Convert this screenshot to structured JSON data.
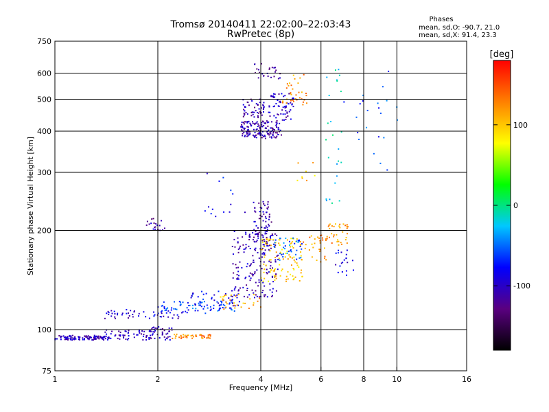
{
  "chart_data": {
    "type": "scatter",
    "title": "Tromsø 20140411 22:02:00–22:03:43",
    "subtitle": "RwPretec (8p)",
    "xlabel": "Frequency [MHz]",
    "ylabel": "Stationary phase Virtual Height [km]",
    "x_scale": "log",
    "y_scale": "log",
    "xlim": [
      1,
      16
    ],
    "ylim": [
      75,
      750
    ],
    "x_ticks": [
      1,
      2,
      4,
      6,
      8,
      10,
      16
    ],
    "y_ticks": [
      75,
      100,
      200,
      300,
      400,
      500,
      600,
      750
    ],
    "x_grid": [
      2,
      4,
      6,
      8,
      10
    ],
    "y_grid": [
      100,
      200,
      300,
      400,
      500,
      600
    ],
    "grid": true,
    "phase_info": {
      "heading": "Phases",
      "line_o": "mean, sd,O: -90.7, 21.0",
      "line_x": "mean, sd,X:  91.4, 23.3"
    },
    "colorbar": {
      "label": "[deg]",
      "range": [
        -180,
        180
      ],
      "ticks": [
        100,
        0,
        -100
      ],
      "colors": [
        "#000000",
        "#5a0080",
        "#0000ff",
        "#00c8ff",
        "#00ff00",
        "#ffff00",
        "#ff8000",
        "#ff0000"
      ]
    },
    "point_clusters": [
      {
        "freq": [
          1.0,
          1.4
        ],
        "height": [
          93,
          96
        ],
        "phase": -105,
        "n": 110
      },
      {
        "freq": [
          1.4,
          1.95
        ],
        "height": [
          93,
          100
        ],
        "phase": -100,
        "n": 60
      },
      {
        "freq": [
          1.85,
          2.2
        ],
        "height": [
          93,
          102
        ],
        "phase": -110,
        "n": 40
      },
      {
        "freq": [
          2.2,
          2.9
        ],
        "height": [
          94,
          97
        ],
        "phase": 130,
        "n": 45
      },
      {
        "freq": [
          1.4,
          2.5
        ],
        "height": [
          108,
          115
        ],
        "phase": -95,
        "n": 55
      },
      {
        "freq": [
          2.0,
          3.4
        ],
        "height": [
          112,
          122
        ],
        "phase": -60,
        "n": 70
      },
      {
        "freq": [
          2.5,
          3.5
        ],
        "height": [
          118,
          132
        ],
        "phase": -80,
        "n": 45
      },
      {
        "freq": [
          3.0,
          4.0
        ],
        "height": [
          115,
          128
        ],
        "phase": 110,
        "n": 30
      },
      {
        "freq": [
          3.3,
          4.5
        ],
        "height": [
          125,
          200
        ],
        "phase": -105,
        "n": 180
      },
      {
        "freq": [
          3.8,
          4.3
        ],
        "height": [
          180,
          245
        ],
        "phase": -110,
        "n": 70
      },
      {
        "freq": [
          4.0,
          5.3
        ],
        "height": [
          140,
          190
        ],
        "phase": 95,
        "n": 110
      },
      {
        "freq": [
          4.3,
          5.3
        ],
        "height": [
          160,
          190
        ],
        "phase": -50,
        "n": 40
      },
      {
        "freq": [
          5.3,
          6.3
        ],
        "height": [
          160,
          195
        ],
        "phase": 120,
        "n": 30
      },
      {
        "freq": [
          6.2,
          7.2
        ],
        "height": [
          180,
          210
        ],
        "phase": 120,
        "n": 35
      },
      {
        "freq": [
          6.5,
          7.5
        ],
        "height": [
          145,
          175
        ],
        "phase": -90,
        "n": 20
      },
      {
        "freq": [
          1.85,
          2.1
        ],
        "height": [
          200,
          218
        ],
        "phase": -110,
        "n": 20
      },
      {
        "freq": [
          3.5,
          4.6
        ],
        "height": [
          380,
          430
        ],
        "phase": -110,
        "n": 150
      },
      {
        "freq": [
          3.5,
          4.1
        ],
        "height": [
          440,
          500
        ],
        "phase": -110,
        "n": 50
      },
      {
        "freq": [
          4.2,
          5.0
        ],
        "height": [
          430,
          520
        ],
        "phase": -100,
        "n": 60
      },
      {
        "freq": [
          4.6,
          5.5
        ],
        "height": [
          480,
          600
        ],
        "phase": 120,
        "n": 35
      },
      {
        "freq": [
          3.8,
          4.6
        ],
        "height": [
          570,
          650
        ],
        "phase": -110,
        "n": 25
      },
      {
        "freq": [
          2.7,
          3.6
        ],
        "height": [
          220,
          300
        ],
        "phase": -80,
        "n": 14
      },
      {
        "freq": [
          6.2,
          6.9
        ],
        "height": [
          240,
          620
        ],
        "phase": -20,
        "n": 25
      },
      {
        "freq": [
          7.0,
          10.2
        ],
        "height": [
          300,
          640
        ],
        "phase": -60,
        "n": 22
      },
      {
        "freq": [
          5.0,
          6.0
        ],
        "height": [
          280,
          330
        ],
        "phase": 100,
        "n": 8
      }
    ]
  }
}
